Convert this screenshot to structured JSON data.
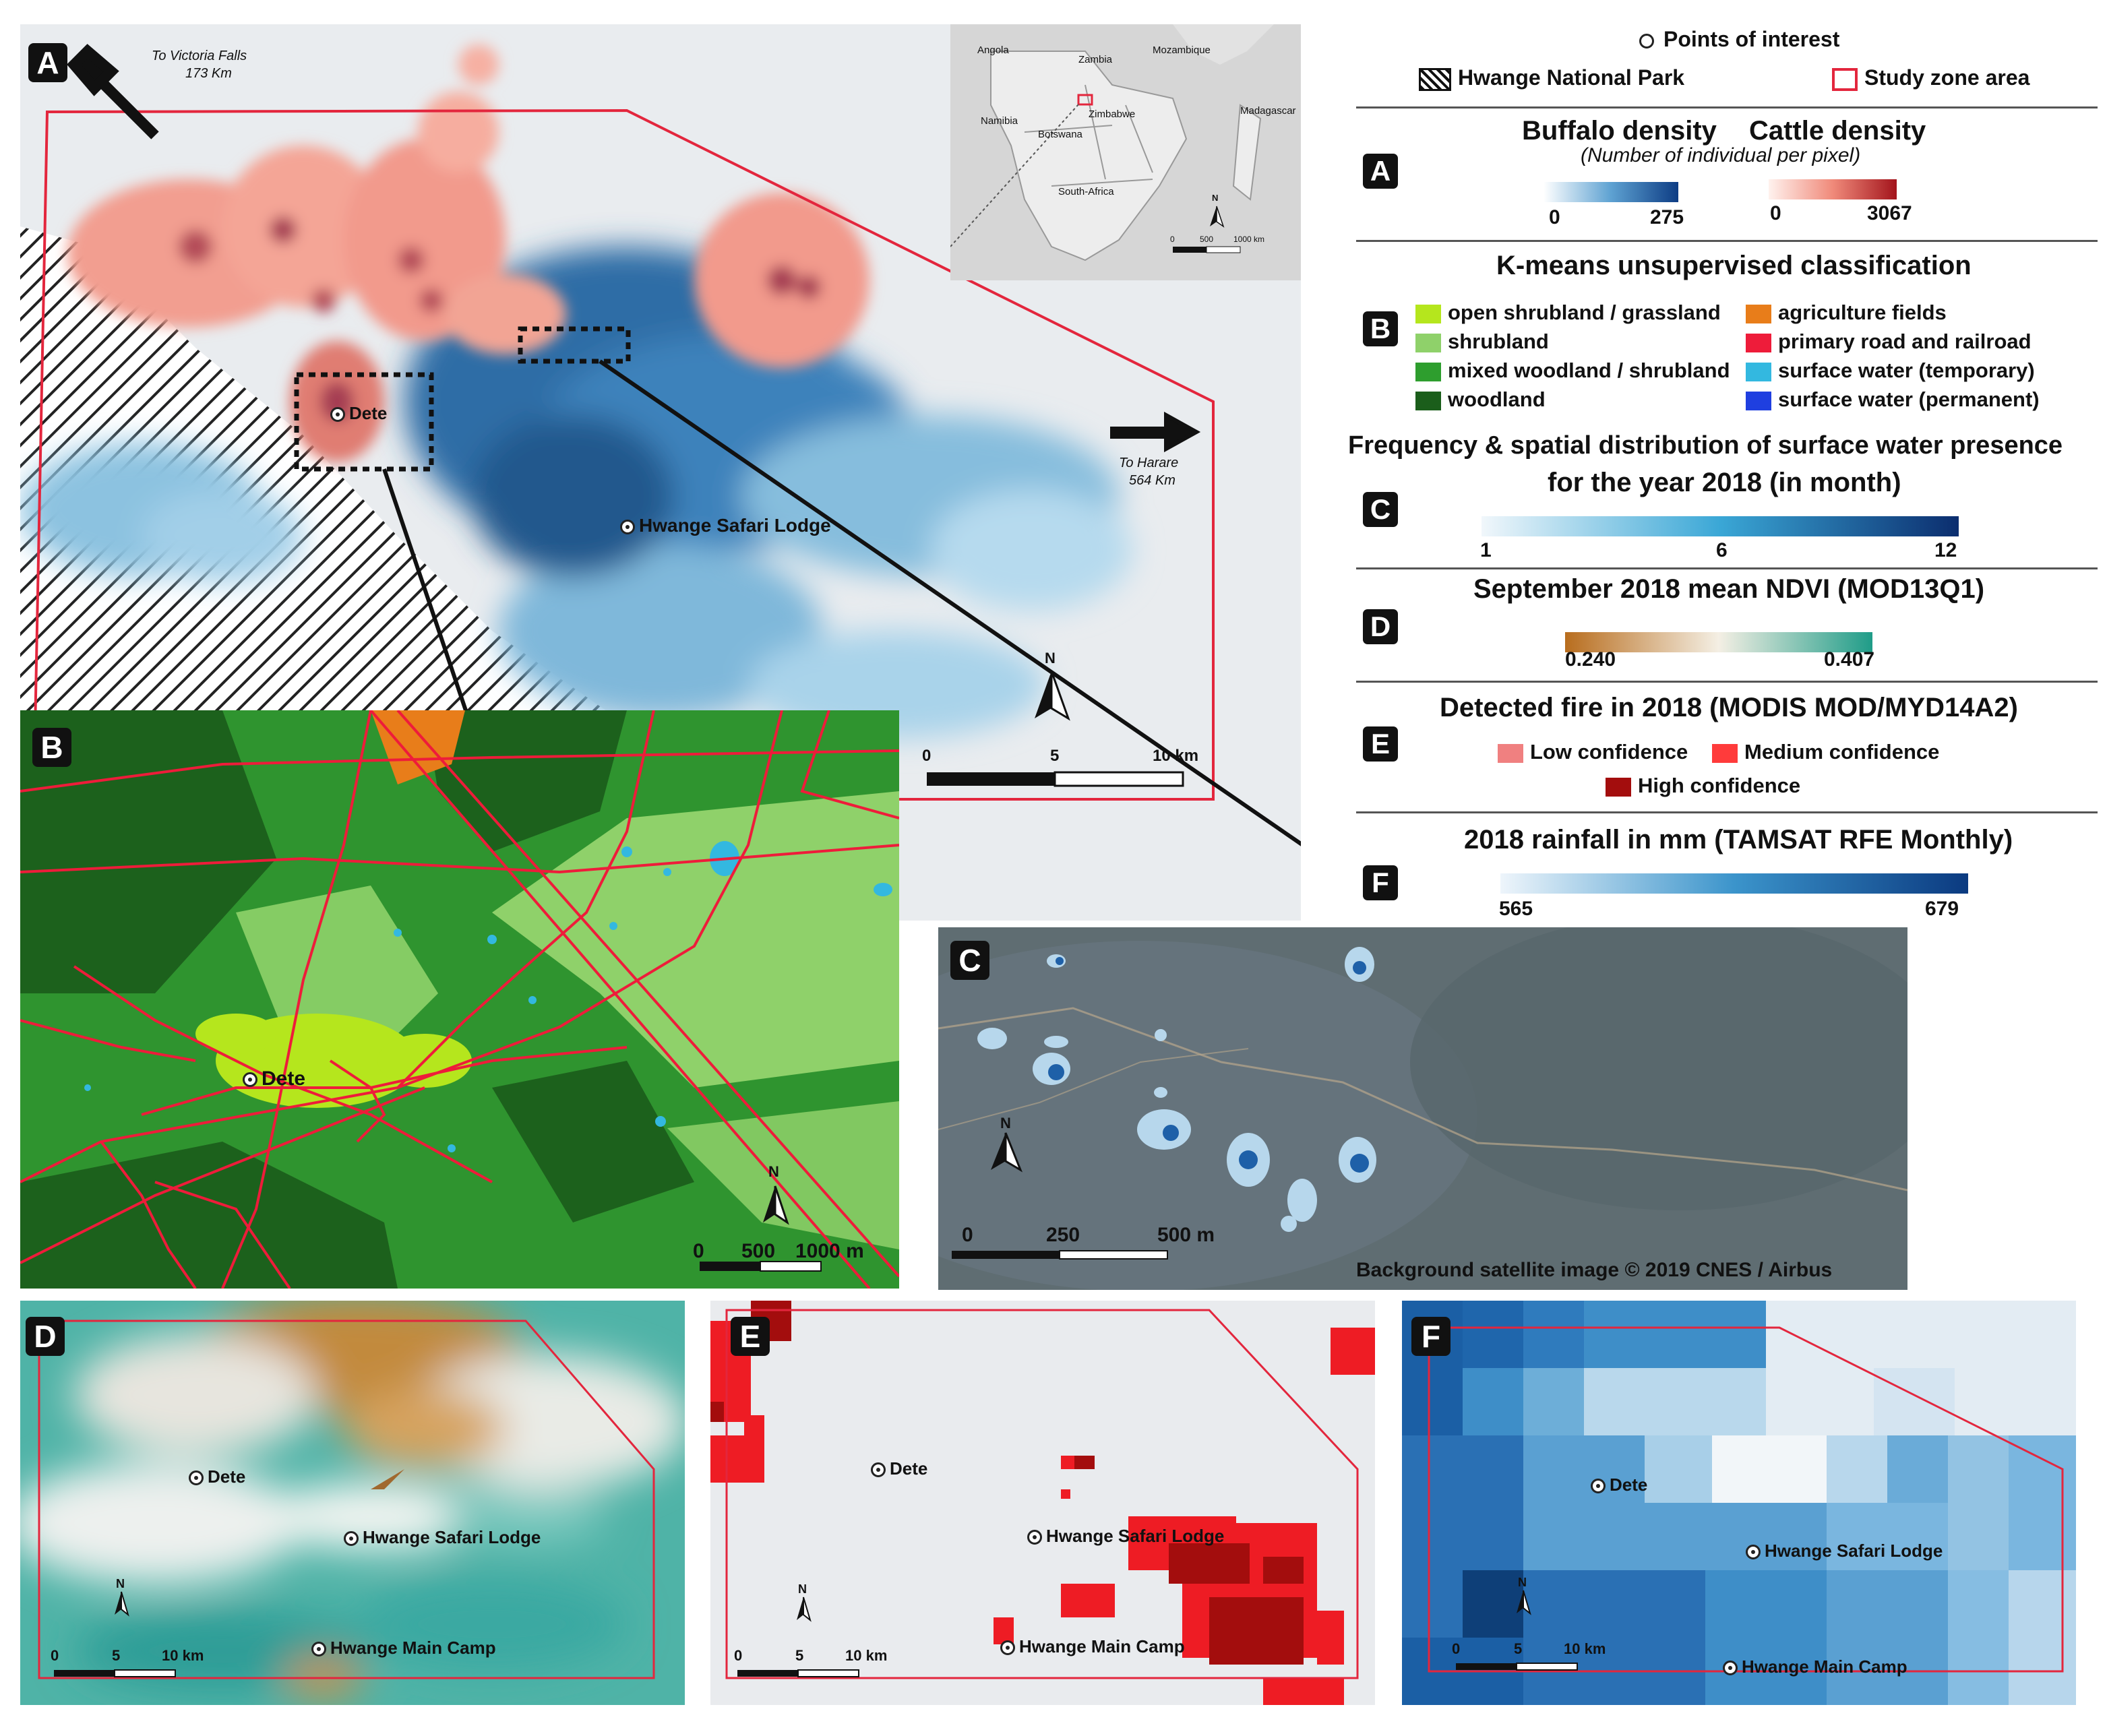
{
  "panels": {
    "A": {
      "badge": "A",
      "to_victoria": "To Victoria Falls",
      "victoria_km": "173 Km",
      "to_harare": "To Harare",
      "harare_km": "564 Km",
      "poi": [
        "Dete",
        "Hwange Safari Lodge"
      ],
      "scale": {
        "ticks": [
          "0",
          "5",
          "10 km"
        ]
      },
      "north": "N",
      "inset": {
        "countries": [
          "Angola",
          "Zambia",
          "Mozambique",
          "Namibia",
          "Zimbabwe",
          "Botswana",
          "Madagascar",
          "South-Africa"
        ],
        "scale": [
          "0",
          "500",
          "1000 km"
        ],
        "north": "N"
      }
    },
    "B": {
      "badge": "B",
      "poi": "Dete",
      "scale": [
        "0",
        "500",
        "1000 m"
      ],
      "north": "N"
    },
    "C": {
      "badge": "C",
      "scale": [
        "0",
        "250",
        "500 m"
      ],
      "north": "N",
      "credit": "Background satellite image © 2019 CNES / Airbus"
    },
    "D": {
      "badge": "D",
      "poi": [
        "Dete",
        "Hwange Safari Lodge",
        "Hwange Main Camp"
      ],
      "scale": [
        "0",
        "5",
        "10 km"
      ],
      "north": "N"
    },
    "E": {
      "badge": "E",
      "poi": [
        "Dete",
        "Hwange Safari Lodge",
        "Hwange Main Camp"
      ],
      "scale": [
        "0",
        "5",
        "10 km"
      ],
      "north": "N"
    },
    "F": {
      "badge": "F",
      "poi": [
        "Dete",
        "Hwange Safari Lodge",
        "Hwange Main Camp"
      ],
      "scale": [
        "0",
        "5",
        "10 km"
      ],
      "north": "N"
    }
  },
  "legend": {
    "poi": "Points of interest",
    "park": "Hwange National Park",
    "study": "Study zone area",
    "A": {
      "badge": "A",
      "buffalo_title": "Buffalo density",
      "cattle_title": "Cattle density",
      "subtitle": "(Number of individual per pixel)",
      "buffalo_min": "0",
      "buffalo_max": "275",
      "cattle_min": "0",
      "cattle_max": "3067"
    },
    "B": {
      "badge": "B",
      "title": "K-means unsupervised classification",
      "classes": [
        {
          "label": "open shrubland / grassland",
          "color": "#b5e61d"
        },
        {
          "label": "shrubland",
          "color": "#8fd16a"
        },
        {
          "label": "mixed woodland / shrubland",
          "color": "#2e9e2e"
        },
        {
          "label": "woodland",
          "color": "#1b5e1b"
        },
        {
          "label": "agriculture fields",
          "color": "#e87d1a"
        },
        {
          "label": "primary road and railroad",
          "color": "#ee1c3a"
        },
        {
          "label": "surface water (temporary)",
          "color": "#33b8e0"
        },
        {
          "label": "surface water (permanent)",
          "color": "#1f3fe0"
        }
      ]
    },
    "C": {
      "badge": "C",
      "title1": "Frequency & spatial distribution of surface water presence",
      "title2": "for the year 2018 (in month)",
      "ticks": [
        "1",
        "6",
        "12"
      ]
    },
    "D": {
      "badge": "D",
      "title": "September 2018 mean NDVI (MOD13Q1)",
      "min": "0.240",
      "max": "0.407"
    },
    "E": {
      "badge": "E",
      "title": "Detected fire in 2018 (MODIS MOD/MYD14A2)",
      "low": "Low confidence",
      "medium": "Medium confidence",
      "high": "High confidence",
      "colors": {
        "low": "#f08080",
        "medium": "#ff3b3b",
        "high": "#a30d0d"
      }
    },
    "F": {
      "badge": "F",
      "title": "2018 rainfall in mm (TAMSAT RFE Monthly)",
      "min": "565",
      "max": "679"
    }
  }
}
